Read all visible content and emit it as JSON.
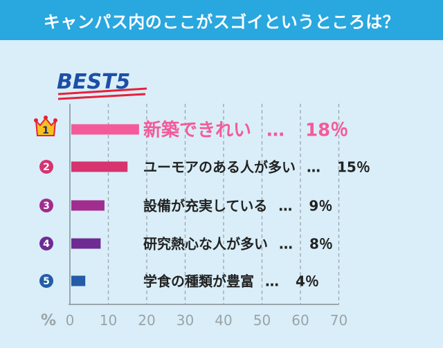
{
  "header": {
    "title": "キャンパス内のここがスゴイというところは？"
  },
  "badge": {
    "text": "BEST5"
  },
  "chart_data": {
    "type": "bar",
    "orientation": "horizontal",
    "title": "キャンパス内のここがスゴイというところは？",
    "axis_unit_label": "%",
    "xlim": [
      0,
      70
    ],
    "ticks": [
      0,
      10,
      20,
      30,
      40,
      50,
      60,
      70
    ],
    "grid": "vertical-dashed",
    "items": [
      {
        "rank": "1",
        "label": "新築できれい",
        "value": 18,
        "value_text": "18％",
        "separator": "…",
        "color": "#f45a9a"
      },
      {
        "rank": "2",
        "label": "ユーモアのある人が多い",
        "value": 15,
        "value_text": "15％",
        "separator": "…",
        "color": "#d6336f"
      },
      {
        "rank": "3",
        "label": "設備が充実している",
        "value": 9,
        "value_text": "9％",
        "separator": "…",
        "color": "#a12d8e"
      },
      {
        "rank": "4",
        "label": "研究熱心な人が多い",
        "value": 8,
        "value_text": "8％",
        "separator": "…",
        "color": "#6e2b94"
      },
      {
        "rank": "5",
        "label": "学食の種類が豊富",
        "value": 4,
        "value_text": "4％",
        "separator": "…",
        "color": "#245ca8"
      }
    ]
  }
}
